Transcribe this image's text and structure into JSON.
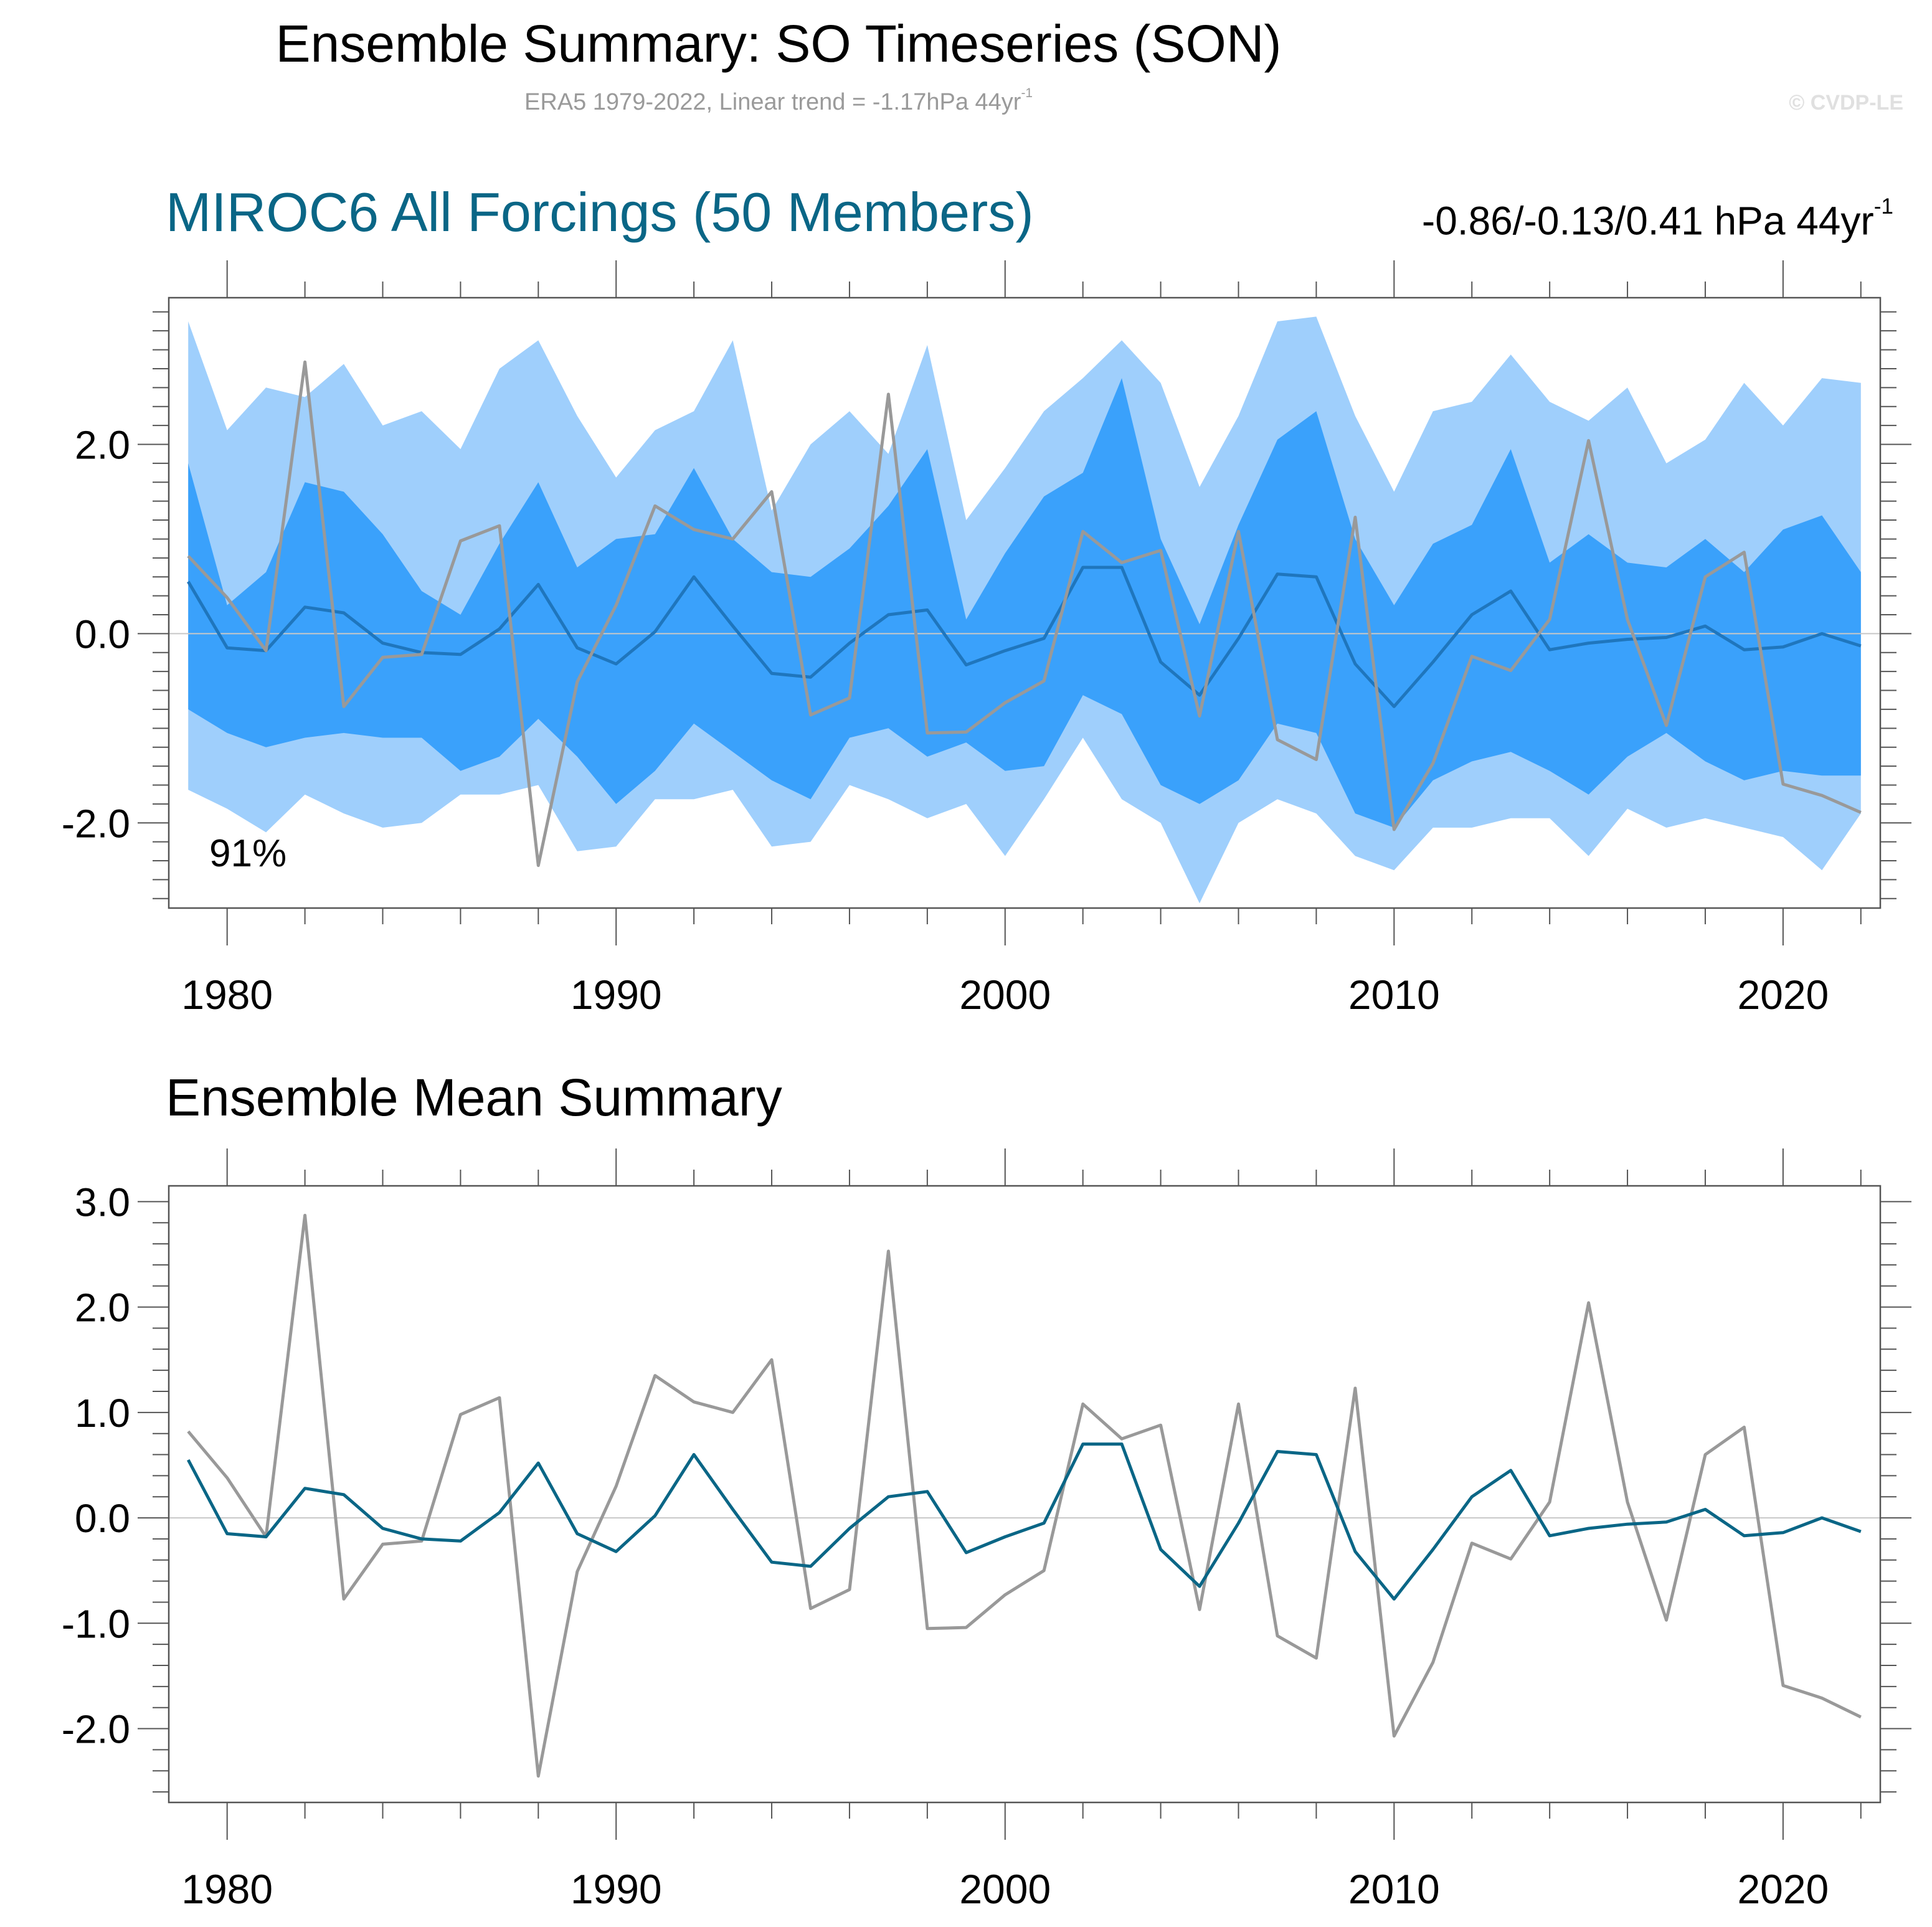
{
  "header": {
    "title": "Ensemble Summary: SO Timeseries (SON)",
    "subtitle_main": "ERA5 1979-2022, Linear trend = -1.17hPa 44yr",
    "subtitle_exp": "-1",
    "copyright": "© CVDP-LE"
  },
  "panel1": {
    "title": "MIROC6 All Forcings (50 Members)",
    "trend_main": "-0.86/-0.13/0.41 hPa 44yr",
    "trend_exp": "-1",
    "pct_label": "91%"
  },
  "panel2": {
    "title": "Ensemble Mean Summary"
  },
  "colors": {
    "outer_band": "#9fcffc",
    "inner_band": "#3aa1fb",
    "panel1_mean_line": "#1f76bd",
    "ensemble_mean": "#0a6686",
    "observations": "#999999",
    "zero_line": "#c8c8c8",
    "axis": "#555555"
  },
  "chart_data": [
    {
      "type": "area",
      "name": "ensemble-spread",
      "title": "MIROC6 All Forcings (50 Members)",
      "x": [
        1979,
        1980,
        1981,
        1982,
        1983,
        1984,
        1985,
        1986,
        1987,
        1988,
        1989,
        1990,
        1991,
        1992,
        1993,
        1994,
        1995,
        1996,
        1997,
        1998,
        1999,
        2000,
        2001,
        2002,
        2003,
        2004,
        2005,
        2006,
        2007,
        2008,
        2009,
        2010,
        2011,
        2012,
        2013,
        2014,
        2015,
        2016,
        2017,
        2018,
        2019,
        2020,
        2021,
        2022
      ],
      "xlim": [
        1978.5,
        2022.5
      ],
      "ylim": [
        -2.9,
        3.55
      ],
      "yticks": [
        -2.0,
        0.0,
        2.0
      ],
      "ytick_labels": [
        "-2.0",
        "0.0",
        "2.0"
      ],
      "xticks": [
        1980,
        1990,
        2000,
        2010,
        2020
      ],
      "xtick_labels": [
        "1980",
        "1990",
        "2000",
        "2010",
        "2020"
      ],
      "series": [
        {
          "name": "max",
          "values": [
            3.3,
            2.15,
            2.6,
            2.5,
            2.85,
            2.2,
            2.35,
            1.95,
            2.8,
            3.1,
            2.3,
            1.65,
            2.15,
            2.35,
            3.1,
            1.3,
            2.0,
            2.35,
            1.9,
            3.05,
            1.2,
            1.75,
            2.35,
            2.7,
            3.1,
            2.65,
            1.55,
            2.3,
            3.3,
            3.35,
            2.3,
            1.5,
            2.35,
            2.45,
            2.95,
            2.45,
            2.25,
            2.6,
            1.8,
            2.05,
            2.65,
            2.2,
            2.7,
            2.65
          ]
        },
        {
          "name": "p90",
          "values": [
            1.8,
            0.3,
            0.65,
            1.6,
            1.5,
            1.05,
            0.45,
            0.2,
            0.95,
            1.6,
            0.7,
            1.0,
            1.05,
            1.75,
            1.0,
            0.65,
            0.6,
            0.9,
            1.35,
            1.95,
            0.15,
            0.85,
            1.45,
            1.7,
            2.7,
            1.0,
            0.1,
            1.15,
            2.05,
            2.35,
            1.0,
            0.3,
            0.95,
            1.15,
            1.95,
            0.75,
            1.05,
            0.75,
            0.7,
            1.0,
            0.65,
            1.1,
            1.25,
            0.65
          ]
        },
        {
          "name": "mean",
          "values": [
            0.55,
            -0.15,
            -0.18,
            0.28,
            0.22,
            -0.1,
            -0.2,
            -0.22,
            0.05,
            0.52,
            -0.15,
            -0.32,
            0.02,
            0.6,
            0.08,
            -0.42,
            -0.46,
            -0.1,
            0.2,
            0.25,
            -0.33,
            -0.18,
            -0.05,
            0.7,
            0.7,
            -0.3,
            -0.65,
            -0.05,
            0.63,
            0.6,
            -0.32,
            -0.77,
            -0.3,
            0.2,
            0.45,
            -0.17,
            -0.1,
            -0.06,
            -0.04,
            0.08,
            -0.17,
            -0.14,
            0.0,
            -0.13
          ]
        },
        {
          "name": "p10",
          "values": [
            -0.8,
            -1.05,
            -1.2,
            -1.1,
            -1.05,
            -1.1,
            -1.1,
            -1.45,
            -1.3,
            -0.9,
            -1.3,
            -1.8,
            -1.45,
            -0.95,
            -1.25,
            -1.55,
            -1.75,
            -1.1,
            -1.0,
            -1.3,
            -1.15,
            -1.45,
            -1.4,
            -0.65,
            -0.85,
            -1.6,
            -1.8,
            -1.55,
            -0.95,
            -1.05,
            -1.9,
            -2.05,
            -1.55,
            -1.35,
            -1.25,
            -1.45,
            -1.7,
            -1.3,
            -1.05,
            -1.35,
            -1.55,
            -1.45,
            -1.5,
            -1.5
          ]
        },
        {
          "name": "min",
          "values": [
            -1.65,
            -1.85,
            -2.1,
            -1.7,
            -1.9,
            -2.05,
            -2.0,
            -1.7,
            -1.7,
            -1.6,
            -2.3,
            -2.25,
            -1.75,
            -1.75,
            -1.65,
            -2.25,
            -2.2,
            -1.6,
            -1.75,
            -1.95,
            -1.8,
            -2.35,
            -1.75,
            -1.1,
            -1.75,
            -2.0,
            -2.85,
            -2.0,
            -1.75,
            -1.9,
            -2.35,
            -2.5,
            -2.05,
            -2.05,
            -1.95,
            -1.95,
            -2.35,
            -1.85,
            -2.05,
            -1.95,
            -2.05,
            -2.15,
            -2.5,
            -1.9
          ]
        },
        {
          "name": "ERA5",
          "values": [
            0.82,
            0.38,
            -0.18,
            2.87,
            -0.77,
            -0.25,
            -0.22,
            0.98,
            1.14,
            -2.45,
            -0.51,
            0.3,
            1.35,
            1.1,
            1.0,
            1.5,
            -0.86,
            -0.68,
            2.53,
            -1.05,
            -1.04,
            -0.73,
            -0.5,
            1.08,
            0.75,
            0.88,
            -0.87,
            1.08,
            -1.12,
            -1.33,
            1.23,
            -2.07,
            -1.37,
            -0.24,
            -0.39,
            0.15,
            2.04,
            0.15,
            -0.97,
            0.6,
            0.86,
            -1.59,
            -1.71,
            -1.89
          ]
        }
      ]
    },
    {
      "type": "line",
      "name": "ensemble-mean-summary",
      "title": "Ensemble Mean Summary",
      "x": [
        1979,
        1980,
        1981,
        1982,
        1983,
        1984,
        1985,
        1986,
        1987,
        1988,
        1989,
        1990,
        1991,
        1992,
        1993,
        1994,
        1995,
        1996,
        1997,
        1998,
        1999,
        2000,
        2001,
        2002,
        2003,
        2004,
        2005,
        2006,
        2007,
        2008,
        2009,
        2010,
        2011,
        2012,
        2013,
        2014,
        2015,
        2016,
        2017,
        2018,
        2019,
        2020,
        2021,
        2022
      ],
      "xlim": [
        1978.5,
        2022.5
      ],
      "ylim": [
        -2.7,
        3.15
      ],
      "yticks": [
        -2.0,
        -1.0,
        0.0,
        1.0,
        2.0,
        3.0
      ],
      "ytick_labels": [
        "-2.0",
        "-1.0",
        "0.0",
        "1.0",
        "2.0",
        "3.0"
      ],
      "xticks": [
        1980,
        1990,
        2000,
        2010,
        2020
      ],
      "xtick_labels": [
        "1980",
        "1990",
        "2000",
        "2010",
        "2020"
      ],
      "series": [
        {
          "name": "ERA5",
          "values": [
            0.82,
            0.38,
            -0.18,
            2.87,
            -0.77,
            -0.25,
            -0.22,
            0.98,
            1.14,
            -2.45,
            -0.51,
            0.3,
            1.35,
            1.1,
            1.0,
            1.5,
            -0.86,
            -0.68,
            2.53,
            -1.05,
            -1.04,
            -0.73,
            -0.5,
            1.08,
            0.75,
            0.88,
            -0.87,
            1.08,
            -1.12,
            -1.33,
            1.23,
            -2.07,
            -1.37,
            -0.24,
            -0.39,
            0.15,
            2.04,
            0.15,
            -0.97,
            0.6,
            0.86,
            -1.59,
            -1.71,
            -1.89
          ]
        },
        {
          "name": "MIROC6 ensemble mean",
          "values": [
            0.55,
            -0.15,
            -0.18,
            0.28,
            0.22,
            -0.1,
            -0.2,
            -0.22,
            0.05,
            0.52,
            -0.15,
            -0.32,
            0.02,
            0.6,
            0.08,
            -0.42,
            -0.46,
            -0.1,
            0.2,
            0.25,
            -0.33,
            -0.18,
            -0.05,
            0.7,
            0.7,
            -0.3,
            -0.65,
            -0.05,
            0.63,
            0.6,
            -0.32,
            -0.77,
            -0.3,
            0.2,
            0.45,
            -0.17,
            -0.1,
            -0.06,
            -0.04,
            0.08,
            -0.17,
            -0.14,
            0.0,
            -0.13
          ]
        }
      ]
    }
  ]
}
